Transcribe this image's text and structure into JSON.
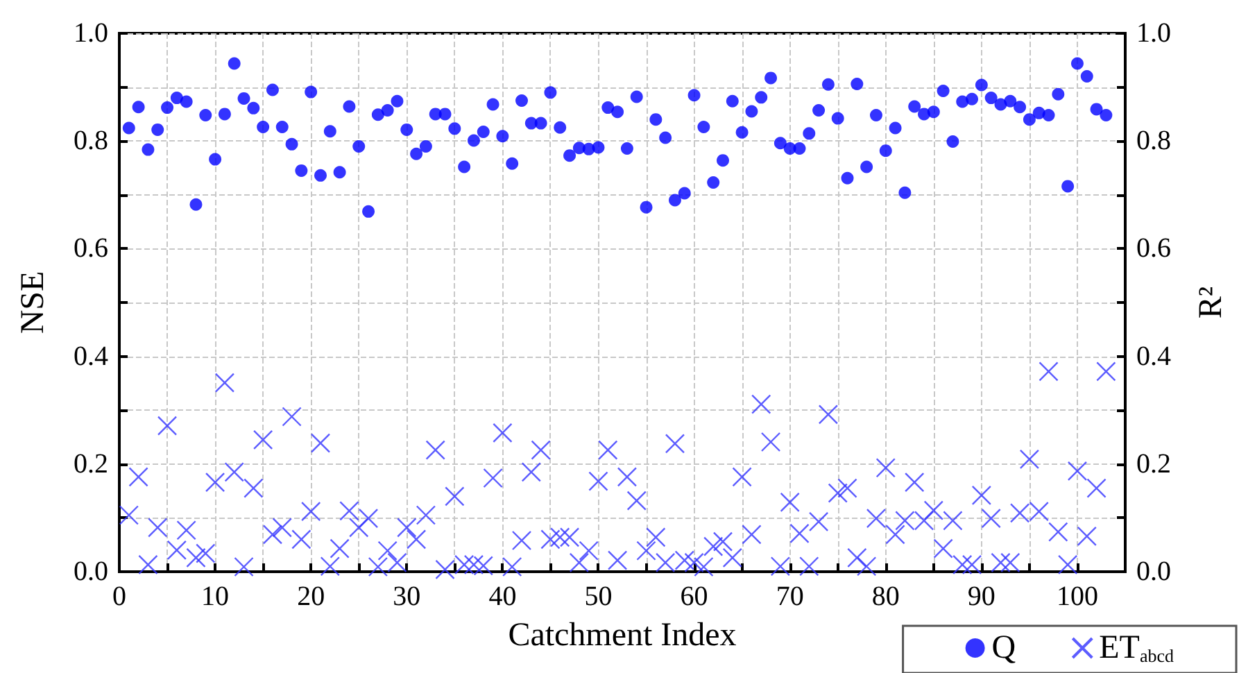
{
  "chart_data": {
    "type": "scatter",
    "xlabel": "Catchment Index",
    "ylabel": "NSE",
    "y2label": "R²",
    "x": [
      1,
      2,
      3,
      4,
      5,
      6,
      7,
      8,
      9,
      10,
      11,
      12,
      13,
      14,
      15,
      16,
      17,
      18,
      19,
      20,
      21,
      22,
      23,
      24,
      25,
      26,
      27,
      28,
      29,
      30,
      31,
      32,
      33,
      34,
      35,
      36,
      37,
      38,
      39,
      40,
      41,
      42,
      43,
      44,
      45,
      46,
      47,
      48,
      49,
      50,
      51,
      52,
      53,
      54,
      55,
      56,
      57,
      58,
      59,
      60,
      61,
      62,
      63,
      64,
      65,
      66,
      67,
      68,
      69,
      70,
      71,
      72,
      73,
      74,
      75,
      76,
      77,
      78,
      79,
      80,
      81,
      82,
      83,
      84,
      85,
      86,
      87,
      88,
      89,
      90,
      91,
      92,
      93,
      94,
      95,
      96,
      97,
      98,
      99,
      100,
      101,
      102,
      103
    ],
    "series": [
      {
        "name": "Q",
        "color": "#0000ff",
        "marker": "circle",
        "values": [
          0.824,
          0.863,
          0.784,
          0.821,
          0.862,
          0.88,
          0.873,
          0.682,
          0.848,
          0.766,
          0.85,
          0.944,
          0.879,
          0.861,
          0.826,
          0.895,
          0.826,
          0.794,
          0.745,
          0.891,
          0.736,
          0.818,
          0.742,
          0.864,
          0.79,
          0.669,
          0.849,
          0.857,
          0.874,
          0.821,
          0.776,
          0.79,
          0.85,
          0.85,
          0.823,
          0.752,
          0.801,
          0.817,
          0.868,
          0.809,
          0.758,
          0.875,
          0.833,
          0.833,
          0.89,
          0.825,
          0.773,
          0.787,
          0.785,
          0.788,
          0.862,
          0.854,
          0.786,
          0.882,
          0.677,
          0.84,
          0.806,
          0.69,
          0.703,
          0.885,
          0.826,
          0.723,
          0.764,
          0.874,
          0.816,
          0.855,
          0.881,
          0.917,
          0.796,
          0.786,
          0.786,
          0.814,
          0.857,
          0.905,
          0.842,
          0.731,
          0.906,
          0.752,
          0.848,
          0.782,
          0.824,
          0.704,
          0.864,
          0.85,
          0.854,
          0.893,
          0.799,
          0.873,
          0.878,
          0.904,
          0.88,
          0.868,
          0.874,
          0.863,
          0.84,
          0.852,
          0.848,
          0.887,
          0.716,
          0.944,
          0.92,
          0.859,
          0.848
        ]
      },
      {
        "name": "ET$_{abcd}$",
        "color": "#3333ff",
        "marker": "cross",
        "values": [
          0.105,
          0.176,
          0.013,
          0.082,
          0.271,
          0.04,
          0.077,
          0.026,
          0.034,
          0.166,
          0.351,
          0.185,
          0.009,
          0.155,
          0.245,
          0.069,
          0.082,
          0.288,
          0.06,
          0.112,
          0.239,
          0.01,
          0.043,
          0.113,
          0.082,
          0.099,
          0.009,
          0.039,
          0.017,
          0.082,
          0.06,
          0.105,
          0.226,
          0.004,
          0.14,
          0.013,
          0.013,
          0.011,
          0.174,
          0.258,
          0.009,
          0.058,
          0.185,
          0.226,
          0.06,
          0.064,
          0.064,
          0.017,
          0.039,
          0.168,
          0.226,
          0.021,
          0.176,
          0.132,
          0.039,
          0.064,
          0.017,
          0.238,
          0.021,
          0.017,
          0.009,
          0.047,
          0.056,
          0.026,
          0.176,
          0.069,
          0.311,
          0.241,
          0.01,
          0.129,
          0.071,
          0.01,
          0.093,
          0.292,
          0.146,
          0.155,
          0.026,
          0.01,
          0.099,
          0.193,
          0.069,
          0.095,
          0.166,
          0.095,
          0.114,
          0.043,
          0.095,
          0.013,
          0.013,
          0.142,
          0.099,
          0.017,
          0.017,
          0.109,
          0.209,
          0.112,
          0.372,
          0.074,
          0.013,
          0.187,
          0.066,
          0.155,
          0.372
        ]
      }
    ],
    "xlim": [
      0,
      105
    ],
    "xticks": [
      0,
      {
        "value": 5,
        "label": null
      },
      10,
      {
        "value": 15,
        "label": null
      },
      20,
      {
        "value": 25,
        "label": null
      },
      30,
      {
        "value": 35,
        "label": null
      },
      40,
      {
        "value": 45,
        "label": null
      },
      50,
      {
        "value": 55,
        "label": null
      },
      60,
      {
        "value": 65,
        "label": null
      },
      70,
      {
        "value": 75,
        "label": null
      },
      80,
      {
        "value": 85,
        "label": null
      },
      90,
      {
        "value": 95,
        "label": null
      },
      100
    ],
    "ylim": [
      0,
      1
    ],
    "yticks": [
      {
        "value": 0,
        "label": "0.0"
      },
      {
        "value": 0.1,
        "label": null
      },
      {
        "value": 0.2,
        "label": "0.2"
      },
      {
        "value": 0.3,
        "label": null
      },
      {
        "value": 0.4,
        "label": "0.4"
      },
      {
        "value": 0.5,
        "label": null
      },
      {
        "value": 0.6,
        "label": "0.6"
      },
      {
        "value": 0.7,
        "label": null
      },
      {
        "value": 0.8,
        "label": "0.8"
      },
      {
        "value": 0.9,
        "label": null
      },
      {
        "value": 1,
        "label": "1.0"
      }
    ],
    "y2lim": [
      0,
      1
    ],
    "y2ticks": [
      {
        "value": 0,
        "label": "0.0"
      },
      {
        "value": 0.1,
        "label": null
      },
      {
        "value": 0.2,
        "label": "0.2"
      },
      {
        "value": 0.3,
        "label": null
      },
      {
        "value": 0.4,
        "label": "0.4"
      },
      {
        "value": 0.5,
        "label": null
      },
      {
        "value": 0.6,
        "label": "0.6"
      },
      {
        "value": 0.7,
        "label": null
      },
      {
        "value": 0.8,
        "label": "0.8"
      },
      {
        "value": 0.9,
        "label": null
      },
      {
        "value": 1,
        "label": "1.0"
      }
    ],
    "grid": true,
    "legend": "bottom right"
  }
}
